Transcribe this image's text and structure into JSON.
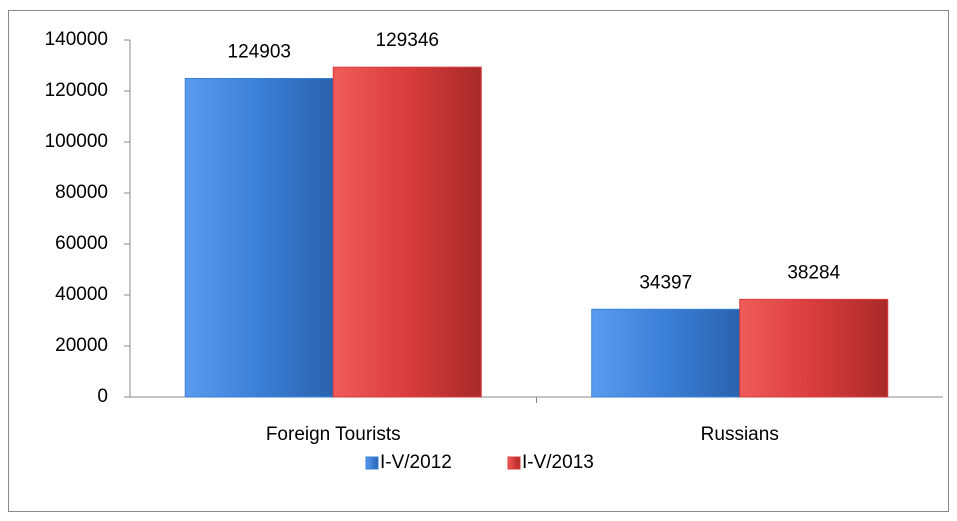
{
  "chart_data": {
    "type": "bar",
    "categories": [
      "Foreign Tourists",
      "Russians"
    ],
    "series": [
      {
        "name": "I-V/2012",
        "color": "#3b7fd6",
        "values": [
          124903,
          34397
        ]
      },
      {
        "name": "I-V/2013",
        "color": "#d93c3c",
        "values": [
          129346,
          38284
        ]
      }
    ],
    "ylim": [
      0,
      140000
    ],
    "yticks": [
      0,
      20000,
      40000,
      60000,
      80000,
      100000,
      120000,
      140000
    ],
    "legend": "bottom"
  }
}
